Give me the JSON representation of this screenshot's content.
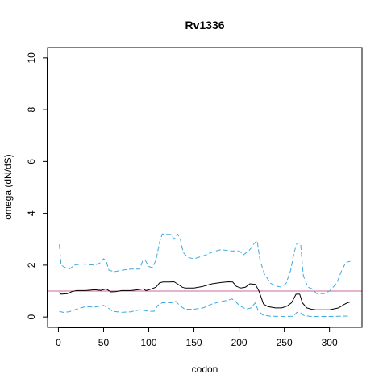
{
  "chart_data": {
    "type": "line",
    "title": "Rv1336",
    "xlabel": "codon",
    "ylabel": "omega (dN/dS)",
    "xlim": [
      -12,
      336
    ],
    "ylim": [
      -0.4,
      10.4
    ],
    "x_ticks": [
      0,
      50,
      100,
      150,
      200,
      250,
      300
    ],
    "y_ticks": [
      0,
      2,
      4,
      6,
      8,
      10
    ],
    "grid": false,
    "reference_line": {
      "y": 1,
      "color": "#cc6699"
    },
    "series": [
      {
        "color": "#000000",
        "dash": "solid",
        "points": [
          [
            1,
            0.95
          ],
          [
            3,
            0.88
          ],
          [
            10,
            0.9
          ],
          [
            15,
            0.98
          ],
          [
            20,
            1.02
          ],
          [
            30,
            1.02
          ],
          [
            40,
            1.05
          ],
          [
            47,
            1.03
          ],
          [
            53,
            1.08
          ],
          [
            58,
            0.97
          ],
          [
            63,
            0.98
          ],
          [
            70,
            1.02
          ],
          [
            80,
            1.02
          ],
          [
            88,
            1.05
          ],
          [
            94,
            1.08
          ],
          [
            97,
            1.02
          ],
          [
            103,
            1.08
          ],
          [
            108,
            1.15
          ],
          [
            112,
            1.32
          ],
          [
            116,
            1.35
          ],
          [
            123,
            1.35
          ],
          [
            128,
            1.36
          ],
          [
            133,
            1.25
          ],
          [
            137,
            1.15
          ],
          [
            140,
            1.12
          ],
          [
            150,
            1.12
          ],
          [
            160,
            1.18
          ],
          [
            170,
            1.28
          ],
          [
            180,
            1.33
          ],
          [
            188,
            1.36
          ],
          [
            193,
            1.35
          ],
          [
            197,
            1.18
          ],
          [
            202,
            1.12
          ],
          [
            207,
            1.15
          ],
          [
            212,
            1.28
          ],
          [
            218,
            1.26
          ],
          [
            222,
            1.0
          ],
          [
            227,
            0.5
          ],
          [
            232,
            0.4
          ],
          [
            240,
            0.35
          ],
          [
            247,
            0.35
          ],
          [
            253,
            0.42
          ],
          [
            258,
            0.55
          ],
          [
            263,
            0.88
          ],
          [
            267,
            0.88
          ],
          [
            270,
            0.55
          ],
          [
            275,
            0.35
          ],
          [
            280,
            0.3
          ],
          [
            285,
            0.28
          ],
          [
            300,
            0.28
          ],
          [
            310,
            0.35
          ],
          [
            316,
            0.48
          ],
          [
            320,
            0.55
          ],
          [
            323,
            0.58
          ]
        ]
      },
      {
        "color": "#3fa9e0",
        "dash": "6,3",
        "points": [
          [
            1,
            2.8
          ],
          [
            3,
            2.0
          ],
          [
            8,
            1.9
          ],
          [
            12,
            1.85
          ],
          [
            18,
            2.0
          ],
          [
            25,
            2.05
          ],
          [
            40,
            2.0
          ],
          [
            47,
            2.1
          ],
          [
            50,
            2.25
          ],
          [
            53,
            2.15
          ],
          [
            56,
            1.8
          ],
          [
            62,
            1.75
          ],
          [
            70,
            1.8
          ],
          [
            80,
            1.85
          ],
          [
            90,
            1.85
          ],
          [
            93,
            2.15
          ],
          [
            96,
            2.2
          ],
          [
            100,
            1.95
          ],
          [
            104,
            1.9
          ],
          [
            108,
            2.2
          ],
          [
            112,
            2.9
          ],
          [
            115,
            3.2
          ],
          [
            125,
            3.18
          ],
          [
            128,
            3.0
          ],
          [
            132,
            3.2
          ],
          [
            135,
            3.0
          ],
          [
            138,
            2.5
          ],
          [
            143,
            2.3
          ],
          [
            150,
            2.25
          ],
          [
            160,
            2.35
          ],
          [
            170,
            2.5
          ],
          [
            180,
            2.6
          ],
          [
            190,
            2.55
          ],
          [
            200,
            2.55
          ],
          [
            205,
            2.4
          ],
          [
            212,
            2.6
          ],
          [
            217,
            2.85
          ],
          [
            220,
            2.95
          ],
          [
            223,
            2.2
          ],
          [
            228,
            1.65
          ],
          [
            235,
            1.3
          ],
          [
            240,
            1.2
          ],
          [
            247,
            1.15
          ],
          [
            252,
            1.3
          ],
          [
            257,
            1.8
          ],
          [
            261,
            2.5
          ],
          [
            264,
            2.85
          ],
          [
            268,
            2.85
          ],
          [
            271,
            1.6
          ],
          [
            276,
            1.15
          ],
          [
            280,
            1.1
          ],
          [
            286,
            0.9
          ],
          [
            294,
            0.9
          ],
          [
            300,
            1.0
          ],
          [
            308,
            1.3
          ],
          [
            313,
            1.75
          ],
          [
            318,
            2.1
          ],
          [
            323,
            2.15
          ]
        ]
      },
      {
        "color": "#3fa9e0",
        "dash": "6,3",
        "points": [
          [
            1,
            0.22
          ],
          [
            5,
            0.18
          ],
          [
            12,
            0.2
          ],
          [
            20,
            0.3
          ],
          [
            30,
            0.4
          ],
          [
            40,
            0.38
          ],
          [
            50,
            0.45
          ],
          [
            55,
            0.35
          ],
          [
            60,
            0.22
          ],
          [
            70,
            0.18
          ],
          [
            80,
            0.2
          ],
          [
            90,
            0.28
          ],
          [
            100,
            0.22
          ],
          [
            106,
            0.22
          ],
          [
            110,
            0.45
          ],
          [
            115,
            0.55
          ],
          [
            125,
            0.55
          ],
          [
            130,
            0.6
          ],
          [
            134,
            0.45
          ],
          [
            140,
            0.3
          ],
          [
            150,
            0.3
          ],
          [
            160,
            0.35
          ],
          [
            170,
            0.5
          ],
          [
            180,
            0.6
          ],
          [
            188,
            0.65
          ],
          [
            192,
            0.7
          ],
          [
            196,
            0.6
          ],
          [
            200,
            0.45
          ],
          [
            208,
            0.3
          ],
          [
            213,
            0.35
          ],
          [
            218,
            0.55
          ],
          [
            221,
            0.25
          ],
          [
            226,
            0.08
          ],
          [
            235,
            0.03
          ],
          [
            250,
            0.02
          ],
          [
            260,
            0.03
          ],
          [
            264,
            0.18
          ],
          [
            268,
            0.15
          ],
          [
            272,
            0.05
          ],
          [
            280,
            0.02
          ],
          [
            300,
            0.02
          ],
          [
            323,
            0.04
          ]
        ]
      }
    ]
  }
}
